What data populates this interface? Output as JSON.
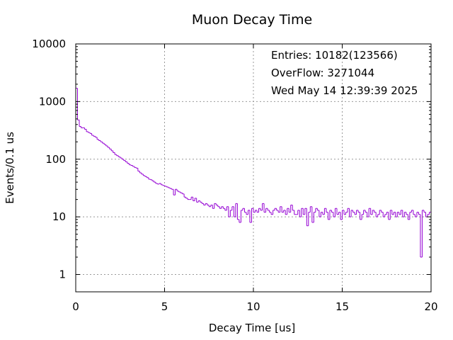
{
  "chart_data": {
    "type": "histogram",
    "title": "Muon Decay Time",
    "xlabel": "Decay Time [us]",
    "ylabel": "Events/0.1 us",
    "xlim": [
      0,
      20
    ],
    "ylim": [
      0.5,
      10000
    ],
    "yscale": "log",
    "grid": true,
    "x_ticks": [
      0,
      5,
      10,
      15,
      20
    ],
    "x_tick_labels": [
      "0",
      "5",
      "10",
      "15",
      "20"
    ],
    "y_ticks": [
      1,
      10,
      100,
      1000,
      10000
    ],
    "y_tick_labels": [
      "1",
      "10",
      "100",
      "1000",
      "10000"
    ],
    "bin_width": 0.1,
    "series_color": "#9400d3",
    "info_box": {
      "entries": "Entries: 10182(123566)",
      "overflow": "OverFlow: 3271044",
      "date": "Wed May 14 12:39:39 2025"
    },
    "counts": [
      1700,
      480,
      370,
      350,
      350,
      330,
      300,
      290,
      280,
      260,
      250,
      240,
      220,
      210,
      200,
      190,
      180,
      170,
      160,
      150,
      140,
      130,
      120,
      115,
      110,
      105,
      100,
      95,
      90,
      85,
      80,
      78,
      75,
      72,
      70,
      62,
      58,
      55,
      52,
      50,
      48,
      45,
      44,
      42,
      40,
      38,
      37,
      38,
      36,
      35,
      34,
      33,
      32,
      31,
      30,
      24,
      30,
      28,
      27,
      26,
      25,
      22,
      21,
      20,
      20,
      22,
      19,
      21,
      18,
      19,
      18,
      17,
      16,
      17,
      16,
      15,
      16,
      14,
      17,
      16,
      15,
      14,
      15,
      14,
      13,
      15,
      10,
      13,
      15,
      10,
      17,
      9,
      8,
      13,
      14,
      12,
      11,
      13,
      8,
      14,
      12,
      13,
      12,
      14,
      13,
      17,
      12,
      14,
      13,
      12,
      11,
      13,
      14,
      13,
      12,
      15,
      12,
      13,
      11,
      14,
      12,
      16,
      13,
      11,
      11,
      13,
      10,
      14,
      11,
      14,
      7,
      12,
      15,
      8,
      12,
      14,
      13,
      10,
      12,
      11,
      14,
      12,
      9,
      13,
      12,
      10,
      14,
      11,
      12,
      9,
      13,
      11,
      12,
      14,
      10,
      13,
      12,
      11,
      13,
      12,
      9,
      11,
      13,
      12,
      10,
      14,
      11,
      13,
      12,
      10,
      11,
      13,
      12,
      10,
      11,
      12,
      9,
      13,
      11,
      12,
      10,
      12,
      11,
      13,
      10,
      12,
      11,
      9,
      12,
      13,
      11,
      10,
      12,
      11,
      2,
      13,
      12,
      10,
      11,
      12
    ]
  }
}
